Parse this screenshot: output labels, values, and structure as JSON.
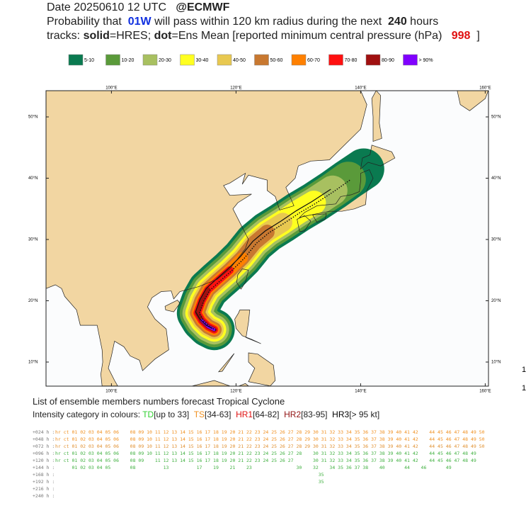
{
  "header": {
    "lines": [
      [
        {
          "text": "Date 20250610 12 UTC   "
        },
        {
          "text": "@ECMWF",
          "bold": true
        }
      ],
      [
        {
          "text": "Probability that  "
        },
        {
          "text": "01W",
          "bold": true,
          "color": "#1030e0"
        },
        {
          "text": " will pass within 120 km radius during the next  "
        },
        {
          "text": "240",
          "bold": true
        },
        {
          "text": " hours"
        }
      ],
      [
        {
          "text": "tracks: "
        },
        {
          "text": "solid",
          "bold": true
        },
        {
          "text": "=HRES; "
        },
        {
          "text": "dot",
          "bold": true
        },
        {
          "text": "=Ens Mean [reported minimum central pressure (hPa)   "
        },
        {
          "text": "998",
          "bold": true,
          "color": "#e01010"
        },
        {
          "text": "  ]"
        }
      ]
    ]
  },
  "legend": [
    {
      "label": "5-10",
      "color": "#0a7a50"
    },
    {
      "label": "10-20",
      "color": "#5a9a3a"
    },
    {
      "label": "20-30",
      "color": "#a8c060"
    },
    {
      "label": "30-40",
      "color": "#ffff20"
    },
    {
      "label": "40-50",
      "color": "#e8c850"
    },
    {
      "label": "50-60",
      "color": "#c87830"
    },
    {
      "label": "60-70",
      "color": "#ff8000"
    },
    {
      "label": "70-80",
      "color": "#ff1010"
    },
    {
      "label": "80-90",
      "color": "#a01010"
    },
    {
      "label": "> 90%",
      "color": "#8000ff"
    }
  ],
  "map": {
    "lon_ticks": [
      {
        "value": 100,
        "label": "100°E"
      },
      {
        "value": 120,
        "label": "120°E"
      },
      {
        "value": 140,
        "label": "140°E"
      },
      {
        "value": 160,
        "label": "160°E"
      }
    ],
    "lat_ticks": [
      {
        "value": 50,
        "label": "50°N"
      },
      {
        "value": 40,
        "label": "40°N"
      },
      {
        "value": 30,
        "label": "30°N"
      },
      {
        "value": 20,
        "label": "20°N"
      },
      {
        "value": 10,
        "label": "10°N"
      }
    ]
  },
  "footer": {
    "title": "List of ensemble members numbers forecast Tropical Cyclone",
    "intensity": [
      {
        "text": "Intensity category in colours: "
      },
      {
        "text": "TD",
        "color": "#30d030"
      },
      {
        "text": "[up to 33]  "
      },
      {
        "text": "TS",
        "color": "#f09020"
      },
      {
        "text": "[34-63]  "
      },
      {
        "text": "HR1",
        "color": "#e01010"
      },
      {
        "text": "[64-82]  "
      },
      {
        "text": "HR2",
        "color": "#901010"
      },
      {
        "text": "[83-95]  "
      },
      {
        "text": "HR3",
        "color": "#000000"
      },
      {
        "text": "[> 95 kt]"
      }
    ]
  },
  "table": {
    "rows": [
      {
        "label": "+024 h :",
        "members": "hr ct 01 02 03 04 05 06    08 09 10 11 12 13 14 15 16 17 18 19 20 21 22 23 24 25 26 27 28 29 30 31 32 33 34 35 36 37 38 39 40 41 42    44 45 46 47 48 49 50",
        "color": "#f09020"
      },
      {
        "label": "+048 h :",
        "members": "hr ct 01 02 03 04 05 06    08 09 10 11 12 13 14 15 16 17 18 19 20 21 22 23 24 25 26 27 28 29 30 31 32 33 34 35 36 37 38 39 40 41 42    44 45 46 47 48 49 50",
        "color": "#f09020"
      },
      {
        "label": "+072 h :",
        "members": "hr ct 01 02 03 04 05 06    08 09 10 11 12 13 14 15 16 17 18 19 20 21 22 23 24 25 26 27 28 29 30 31 32 33 34 35 36 37 38 39 40 41 42    44 45 46 47 48 49 50",
        "color": "#e09030"
      },
      {
        "label": "+096 h :",
        "members": "hr ct 01 02 03 04 05 06    08 09 10 11 12 13 14 15 16 17 18 19 20 21 22 23 24 25 26 27 28    30 31 32 33 34 35 36 37 38 39 40 41 42    44 45 46 47 48 49",
        "color": "#40b040"
      },
      {
        "label": "+120 h :",
        "members": "hr ct 01 02 03 04 05 06    08 09    11 12 13 14 15 16 17 18 19 20 21 22 23 24 25 26 27       30 31 32 33 34 35 36 37 38 39 40 41 42    44 45 46 47 48 49",
        "color": "#40b040"
      },
      {
        "label": "+144 h :",
        "members": "      01 02 03 04 05       08          13          17    19    21    23                30    32    34 35 36 37 38    40       44    46       49",
        "color": "#40b040"
      },
      {
        "label": "+168 h :",
        "members": "                                                                                               35",
        "color": "#40b040"
      },
      {
        "label": "+192 h :",
        "members": "                                                                                               35",
        "color": "#40b040"
      },
      {
        "label": "+216 h :",
        "members": "",
        "color": "#40b040"
      },
      {
        "label": "+240 h :",
        "members": "",
        "color": "#40b040"
      }
    ]
  },
  "side_marks": [
    "1",
    "1"
  ]
}
